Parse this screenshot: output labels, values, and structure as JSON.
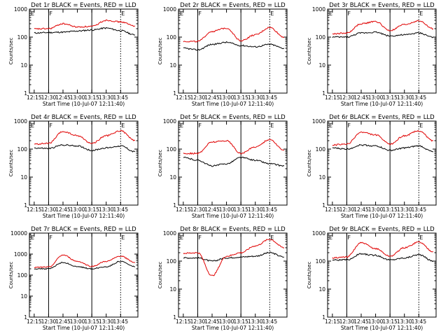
{
  "colors": {
    "events": "#000000",
    "lld": "#e00000",
    "axis": "#000000"
  },
  "x_tick_labels": [
    "12:15",
    "12:30",
    "12:45",
    "13:00",
    "13:15",
    "13:30",
    "13:45"
  ],
  "x_axis_label": "Start Time (10-Jul-07 12:11:40)",
  "y_axis_label": "Counts/sec",
  "chart_data": [
    {
      "type": "line",
      "title": "Det 1r BLACK = Events, RED = LLD",
      "x_minutes": [
        0,
        15,
        30,
        45,
        60,
        75,
        90,
        105
      ],
      "xlabel": "Start Time (10-Jul-07 12:11:40)",
      "ylabel": "Counts/sec",
      "yscale": "log",
      "ylim": [
        1,
        1000
      ],
      "y_tick_labels": [
        "1",
        "10",
        "100",
        "1000"
      ],
      "markers": [
        {
          "label": "F",
          "style": "solid"
        },
        {
          "label": "",
          "style": "solid"
        },
        {
          "label": "E",
          "style": "dotted"
        }
      ],
      "series": [
        {
          "name": "Events",
          "color": "#000000",
          "values": [
            140,
            145,
            150,
            165,
            180,
            210,
            170,
            120
          ]
        },
        {
          "name": "LLD",
          "color": "#e00000",
          "values": [
            195,
            200,
            300,
            230,
            240,
            400,
            350,
            250
          ]
        }
      ]
    },
    {
      "type": "line",
      "title": "Det 2r BLACK = Events, RED = LLD",
      "x_minutes": [
        0,
        15,
        30,
        45,
        60,
        75,
        90,
        105
      ],
      "xlabel": "Start Time (10-Jul-07 12:11:40)",
      "ylabel": "Counts/sec",
      "yscale": "log",
      "ylim": [
        1,
        1000
      ],
      "y_tick_labels": [
        "1",
        "10",
        "100",
        "1000"
      ],
      "markers": [
        {
          "label": "F",
          "style": "solid"
        },
        {
          "label": "",
          "style": "solid"
        },
        {
          "label": "E",
          "style": "dotted"
        }
      ],
      "series": [
        {
          "name": "Events",
          "color": "#000000",
          "values": [
            40,
            35,
            55,
            65,
            50,
            45,
            55,
            40
          ]
        },
        {
          "name": "LLD",
          "color": "#e00000",
          "values": [
            70,
            70,
            160,
            210,
            75,
            120,
            220,
            100
          ]
        }
      ]
    },
    {
      "type": "line",
      "title": "Det 3r BLACK = Events, RED = LLD",
      "x_minutes": [
        0,
        15,
        30,
        45,
        60,
        75,
        90,
        105
      ],
      "xlabel": "Start Time (10-Jul-07 12:11:40)",
      "ylabel": "Counts/sec",
      "yscale": "log",
      "ylim": [
        1,
        1000
      ],
      "y_tick_labels": [
        "1",
        "10",
        "100",
        "1000"
      ],
      "markers": [
        {
          "label": "F",
          "style": "solid"
        },
        {
          "label": "",
          "style": "solid"
        },
        {
          "label": "E",
          "style": "dotted"
        }
      ],
      "series": [
        {
          "name": "Events",
          "color": "#000000",
          "values": [
            100,
            100,
            140,
            150,
            110,
            120,
            140,
            100
          ]
        },
        {
          "name": "LLD",
          "color": "#e00000",
          "values": [
            130,
            140,
            300,
            360,
            170,
            280,
            380,
            200
          ]
        }
      ]
    },
    {
      "type": "line",
      "title": "Det 4r BLACK = Events, RED = LLD",
      "x_minutes": [
        0,
        15,
        30,
        45,
        60,
        75,
        90,
        105
      ],
      "xlabel": "Start Time (10-Jul-07 12:11:40)",
      "ylabel": "Counts/sec",
      "yscale": "log",
      "ylim": [
        1,
        1000
      ],
      "y_tick_labels": [
        "1",
        "10",
        "100",
        "1000"
      ],
      "markers": [
        {
          "label": "F",
          "style": "solid"
        },
        {
          "label": "",
          "style": "solid"
        },
        {
          "label": "E",
          "style": "dotted"
        }
      ],
      "series": [
        {
          "name": "Events",
          "color": "#000000",
          "values": [
            110,
            105,
            140,
            130,
            90,
            110,
            130,
            80
          ]
        },
        {
          "name": "LLD",
          "color": "#e00000",
          "values": [
            150,
            160,
            420,
            300,
            160,
            300,
            450,
            200
          ]
        }
      ]
    },
    {
      "type": "line",
      "title": "Det 5r BLACK = Events, RED = LLD",
      "x_minutes": [
        0,
        15,
        30,
        45,
        60,
        75,
        90,
        105
      ],
      "xlabel": "Start Time (10-Jul-07 12:11:40)",
      "ylabel": "Counts/sec",
      "yscale": "log",
      "ylim": [
        1,
        1000
      ],
      "y_tick_labels": [
        "1",
        "10",
        "100",
        "1000"
      ],
      "markers": [
        {
          "label": "F",
          "style": "solid"
        },
        {
          "label": "",
          "style": "solid"
        },
        {
          "label": "E",
          "style": "dotted"
        }
      ],
      "series": [
        {
          "name": "Events",
          "color": "#000000",
          "values": [
            50,
            40,
            25,
            30,
            50,
            40,
            30,
            25
          ]
        },
        {
          "name": "LLD",
          "color": "#e00000",
          "values": [
            70,
            70,
            180,
            200,
            70,
            120,
            220,
            90
          ]
        }
      ]
    },
    {
      "type": "line",
      "title": "Det 6r BLACK = Events, RED = LLD",
      "x_minutes": [
        0,
        15,
        30,
        45,
        60,
        75,
        90,
        105
      ],
      "xlabel": "Start Time (10-Jul-07 12:11:40)",
      "ylabel": "Counts/sec",
      "yscale": "log",
      "ylim": [
        1,
        1000
      ],
      "y_tick_labels": [
        "1",
        "10",
        "100",
        "1000"
      ],
      "markers": [
        {
          "label": "F",
          "style": "solid"
        },
        {
          "label": "",
          "style": "solid"
        },
        {
          "label": "E",
          "style": "dotted"
        }
      ],
      "series": [
        {
          "name": "Events",
          "color": "#000000",
          "values": [
            110,
            100,
            140,
            130,
            90,
            110,
            130,
            80
          ]
        },
        {
          "name": "LLD",
          "color": "#e00000",
          "values": [
            140,
            150,
            400,
            320,
            150,
            300,
            450,
            200
          ]
        }
      ]
    },
    {
      "type": "line",
      "title": "Det 7r BLACK = Events, RED = LLD",
      "x_minutes": [
        0,
        15,
        30,
        45,
        60,
        75,
        90,
        105
      ],
      "xlabel": "Start Time (10-Jul-07 12:11:40)",
      "ylabel": "Counts/sec",
      "yscale": "log",
      "ylim": [
        1,
        10000
      ],
      "y_tick_labels": [
        "1",
        "10",
        "100",
        "1000",
        "10000"
      ],
      "markers": [
        {
          "label": "F",
          "style": "solid"
        },
        {
          "label": "",
          "style": "solid"
        },
        {
          "label": "E",
          "style": "dotted"
        }
      ],
      "series": [
        {
          "name": "Events",
          "color": "#000000",
          "values": [
            200,
            200,
            400,
            250,
            200,
            250,
            450,
            250
          ]
        },
        {
          "name": "LLD",
          "color": "#e00000",
          "values": [
            230,
            240,
            900,
            450,
            260,
            450,
            800,
            400
          ]
        }
      ]
    },
    {
      "type": "line",
      "title": "Det 8r BLACK = Events, RED = LLD",
      "x_minutes": [
        0,
        15,
        30,
        45,
        60,
        75,
        90,
        105
      ],
      "xlabel": "Start Time (10-Jul-07 12:11:40)",
      "ylabel": "Counts/sec",
      "yscale": "log",
      "ylim": [
        1,
        1000
      ],
      "y_tick_labels": [
        "1",
        "10",
        "100",
        "1000"
      ],
      "markers": [
        {
          "label": "F",
          "style": "solid"
        },
        {
          "label": "",
          "style": "solid"
        },
        {
          "label": "E",
          "style": "dotted"
        }
      ],
      "series": [
        {
          "name": "Events",
          "color": "#000000",
          "values": [
            130,
            130,
            100,
            130,
            140,
            150,
            200,
            140
          ]
        },
        {
          "name": "LLD",
          "color": "#e00000",
          "values": [
            190,
            200,
            30,
            150,
            200,
            350,
            600,
            300
          ]
        }
      ]
    },
    {
      "type": "line",
      "title": "Det 9r BLACK = Events, RED = LLD",
      "x_minutes": [
        0,
        15,
        30,
        45,
        60,
        75,
        90,
        105
      ],
      "xlabel": "Start Time (10-Jul-07 12:11:40)",
      "ylabel": "Counts/sec",
      "yscale": "log",
      "ylim": [
        1,
        1000
      ],
      "y_tick_labels": [
        "1",
        "10",
        "100",
        "1000"
      ],
      "markers": [
        {
          "label": "F",
          "style": "solid"
        },
        {
          "label": "",
          "style": "solid"
        },
        {
          "label": "E",
          "style": "dotted"
        }
      ],
      "series": [
        {
          "name": "Events",
          "color": "#000000",
          "values": [
            110,
            110,
            180,
            160,
            110,
            130,
            170,
            100
          ]
        },
        {
          "name": "LLD",
          "color": "#e00000",
          "values": [
            130,
            140,
            450,
            280,
            150,
            300,
            480,
            220
          ]
        }
      ]
    }
  ]
}
